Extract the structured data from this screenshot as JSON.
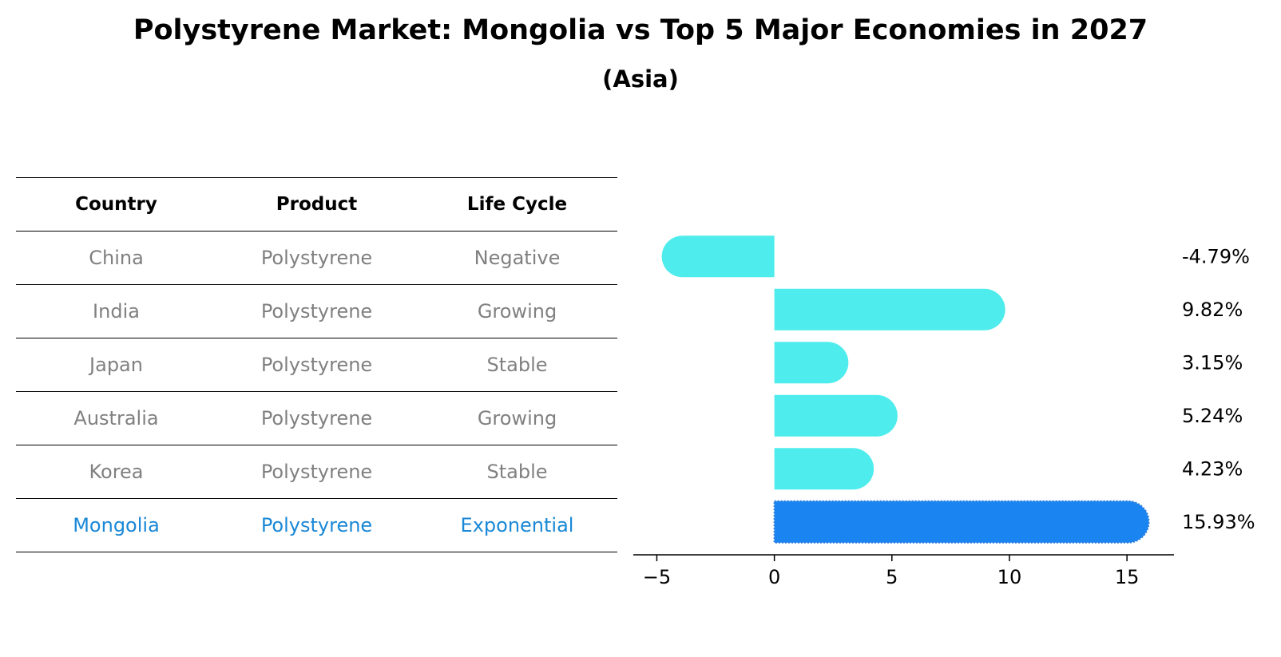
{
  "title": "Polystyrene Market: Mongolia vs Top 5 Major Economies in 2027",
  "subtitle": "(Asia)",
  "table": {
    "headers": [
      "Country",
      "Product",
      "Life Cycle"
    ],
    "rows": [
      {
        "country": "China",
        "product": "Polystyrene",
        "life_cycle": "Negative"
      },
      {
        "country": "India",
        "product": "Polystyrene",
        "life_cycle": "Growing"
      },
      {
        "country": "Japan",
        "product": "Polystyrene",
        "life_cycle": "Stable"
      },
      {
        "country": "Australia",
        "product": "Polystyrene",
        "life_cycle": "Growing"
      },
      {
        "country": "Korea",
        "product": "Polystyrene",
        "life_cycle": "Stable"
      },
      {
        "country": "Mongolia",
        "product": "Polystyrene",
        "life_cycle": "Exponential"
      }
    ]
  },
  "chart_data": {
    "type": "bar",
    "orientation": "horizontal",
    "title": "Polystyrene Market: Mongolia vs Top 5 Major Economies in 2027",
    "subtitle": "(Asia)",
    "categories": [
      "China",
      "India",
      "Japan",
      "Australia",
      "Korea",
      "Mongolia"
    ],
    "values": [
      -4.79,
      9.82,
      3.15,
      5.24,
      4.23,
      15.93
    ],
    "value_labels": [
      "-4.79%",
      "9.82%",
      "3.15%",
      "5.24%",
      "4.23%",
      "15.93%"
    ],
    "xlim": [
      -6,
      17
    ],
    "xticks": [
      -5,
      0,
      5,
      10,
      15
    ],
    "xtick_labels": [
      "−5",
      "0",
      "5",
      "10",
      "15"
    ],
    "grid": false,
    "colors": {
      "default": "#4eecec",
      "highlight": "#1a85f0"
    },
    "highlight_category": "Mongolia"
  }
}
